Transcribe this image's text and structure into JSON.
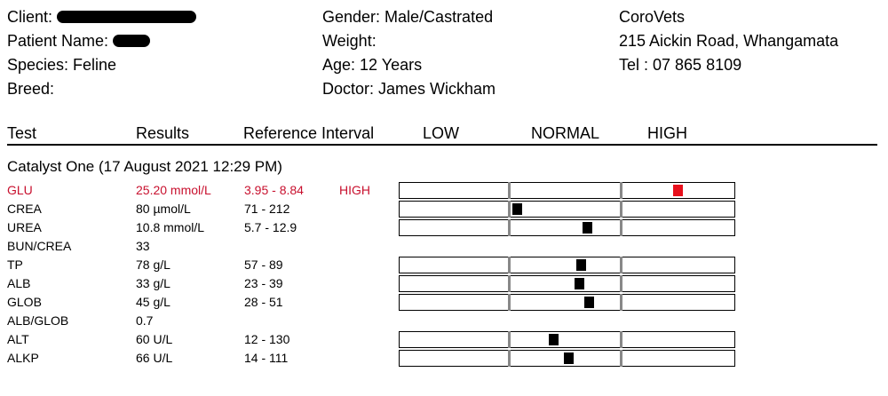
{
  "header": {
    "client_label": "Client:",
    "patient_label": "Patient Name:",
    "species": "Species: Feline",
    "breed": "Breed:",
    "gender": "Gender: Male/Castrated",
    "weight": "Weight:",
    "age": "Age: 12 Years",
    "doctor": "Doctor: James Wickham",
    "clinic_name": "CoroVets",
    "clinic_address": "215 Aickin Road, Whangamata",
    "clinic_tel": "Tel : 07 865 8109"
  },
  "columns": {
    "test": "Test",
    "results": "Results",
    "reference": "Reference Interval",
    "low": "LOW",
    "normal": "NORMAL",
    "high": "HIGH"
  },
  "section_title": "Catalyst One (17 August 2021 12:29 PM)",
  "colors": {
    "high_text": "#c8102e",
    "high_marker": "#e8101c",
    "normal_marker": "#000000"
  },
  "results": [
    {
      "test": "GLU",
      "result": "25.20 mmol/L",
      "reference": "3.95 - 8.84",
      "flag": "HIGH",
      "level": 0.83
    },
    {
      "test": "CREA",
      "result": "80 µmol/L",
      "reference": "71 - 212",
      "flag": "",
      "level": 0.35
    },
    {
      "test": "UREA",
      "result": "10.8 mmol/L",
      "reference": "5.7 - 12.9",
      "flag": "",
      "level": 0.56
    },
    {
      "test": "BUN/CREA",
      "result": "33",
      "reference": "",
      "flag": ""
    },
    {
      "test": "TP",
      "result": "78 g/L",
      "reference": "57 - 89",
      "flag": "",
      "level": 0.54
    },
    {
      "test": "ALB",
      "result": "33 g/L",
      "reference": "23 - 39",
      "flag": "",
      "level": 0.535
    },
    {
      "test": "GLOB",
      "result": "45 g/L",
      "reference": "28 - 51",
      "flag": "",
      "level": 0.565
    },
    {
      "test": "ALB/GLOB",
      "result": "0.7",
      "reference": "",
      "flag": ""
    },
    {
      "test": "ALT",
      "result": "60 U/L",
      "reference": "12 - 130",
      "flag": "",
      "level": 0.46
    },
    {
      "test": "ALKP",
      "result": "66 U/L",
      "reference": "14 - 111",
      "flag": "",
      "level": 0.505
    }
  ]
}
